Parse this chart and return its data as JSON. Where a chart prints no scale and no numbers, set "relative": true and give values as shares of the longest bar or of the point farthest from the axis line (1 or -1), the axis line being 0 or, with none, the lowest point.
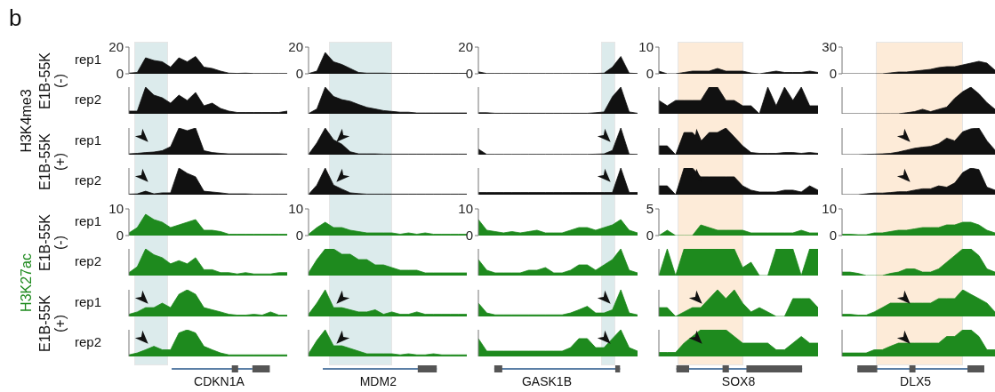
{
  "chart_data": [
    {
      "type": "area",
      "title": "b",
      "annotations": [
        "H3K4me3",
        "E1B-55K\n(-)"
      ],
      "ylabel": "rep1",
      "categories": [
        null,
        null,
        null,
        null,
        null,
        null,
        null,
        null,
        null,
        null,
        null,
        null,
        null,
        null,
        null,
        null,
        null,
        null,
        null,
        null
      ],
      "values": [
        0.5,
        1,
        12,
        10,
        9,
        5,
        12,
        9,
        13,
        5,
        4,
        2,
        0.5,
        0.3,
        0.5,
        0.2,
        0.2,
        0.2,
        0.2,
        0.2
      ],
      "color": "#111111",
      "ylim": [
        0,
        20
      ],
      "yticks": [
        0,
        20
      ],
      "tick_labels": "y"
    },
    {
      "type": "area",
      "categories": [
        null,
        null,
        null,
        null,
        null,
        null,
        null,
        null,
        null,
        null,
        null,
        null,
        null,
        null,
        null,
        null,
        null,
        null,
        null,
        null
      ],
      "values": [
        0.2,
        2,
        16,
        9,
        7,
        4,
        1,
        0.5,
        0.5,
        0.5,
        0.3,
        0.3,
        0.3,
        0.3,
        0.3,
        0.3,
        0.3,
        0.3,
        0.3,
        0.3
      ],
      "color": "#111111",
      "ylim": [
        0,
        20
      ],
      "yticks": [
        0,
        20
      ],
      "tick_labels": "y"
    },
    {
      "type": "area",
      "categories": [
        null,
        null,
        null,
        null,
        null,
        null,
        null,
        null,
        null,
        null,
        null,
        null,
        null,
        null,
        null,
        null,
        null,
        null,
        null,
        null
      ],
      "values": [
        1.5,
        0.2,
        0.2,
        0.2,
        0.2,
        0.2,
        0.2,
        0.2,
        0.2,
        0.2,
        0.2,
        0.2,
        0.2,
        0.2,
        0.3,
        0.5,
        5,
        13,
        0.5,
        0.2
      ],
      "color": "#111111",
      "ylim": [
        0,
        20
      ],
      "yticks": [
        0,
        20
      ],
      "tick_labels": "y"
    },
    {
      "type": "area",
      "categories": [
        null,
        null,
        null,
        null,
        null,
        null,
        null,
        null,
        null,
        null,
        null,
        null,
        null,
        null,
        null,
        null,
        null,
        null,
        null,
        null
      ],
      "values": [
        1,
        0,
        0,
        0.5,
        1,
        1,
        1,
        2,
        1,
        1,
        1,
        0.3,
        0,
        0.5,
        1,
        0.5,
        0.5,
        0.5,
        1,
        0.5
      ],
      "color": "#111111",
      "ylim": [
        0,
        10
      ],
      "yticks": [
        0,
        10
      ],
      "tick_labels": "y"
    },
    {
      "type": "area",
      "categories": [
        null,
        null,
        null,
        null,
        null,
        null,
        null,
        null,
        null,
        null,
        null,
        null,
        null,
        null,
        null,
        null,
        null,
        null,
        null,
        null
      ],
      "values": [
        0,
        0,
        0,
        0,
        0,
        0,
        1,
        2,
        2,
        3,
        4,
        5,
        7,
        8,
        8,
        10,
        12,
        14,
        12,
        4
      ],
      "color": "#111111",
      "ylim": [
        0,
        30
      ],
      "yticks": [
        0,
        30
      ],
      "tick_labels": "y"
    },
    {
      "type": "area",
      "ylabel": "rep2",
      "relative": true,
      "categories": [
        null,
        null,
        null,
        null,
        null,
        null,
        null,
        null,
        null,
        null,
        null,
        null,
        null,
        null,
        null,
        null,
        null,
        null,
        null,
        null
      ],
      "values": [
        0.1,
        0.1,
        1,
        0.7,
        0.6,
        0.4,
        0.7,
        0.5,
        0.8,
        0.3,
        0.4,
        0.2,
        0.1,
        0.05,
        0.05,
        0.05,
        0.05,
        0.05,
        0.05,
        0.1
      ],
      "color": "#111111"
    },
    {
      "type": "area",
      "relative": true,
      "categories": [
        null,
        null,
        null,
        null,
        null,
        null,
        null,
        null,
        null,
        null,
        null,
        null,
        null,
        null,
        null,
        null,
        null,
        null,
        null,
        null
      ],
      "values": [
        0.01,
        0.18,
        1,
        0.65,
        0.53,
        0.47,
        0.35,
        0.24,
        0.18,
        0.12,
        0.09,
        0.06,
        0.06,
        0.03,
        0.03,
        0.03,
        0.03,
        0.03,
        0.03,
        0.03
      ],
      "color": "#111111"
    },
    {
      "type": "area",
      "relative": true,
      "categories": [
        null,
        null,
        null,
        null,
        null,
        null,
        null,
        null,
        null,
        null,
        null,
        null,
        null,
        null,
        null,
        null,
        null,
        null,
        null,
        null
      ],
      "values": [
        0.04,
        0.04,
        0.02,
        0.02,
        0.02,
        0.02,
        0.02,
        0.02,
        0.02,
        0.02,
        0.02,
        0.02,
        0.02,
        0.02,
        0.04,
        0.07,
        0.64,
        1,
        0.07,
        0.02
      ],
      "color": "#111111"
    },
    {
      "type": "area",
      "relative": true,
      "categories": [
        null,
        null,
        null,
        null,
        null,
        null,
        null,
        null,
        null,
        null,
        null,
        null,
        null,
        null,
        null,
        null,
        null,
        null,
        null,
        null
      ],
      "values": [
        0.5,
        0.3,
        0.5,
        0.5,
        0.5,
        0.5,
        1,
        1,
        0.5,
        0.5,
        0.3,
        0.3,
        0,
        1,
        0.3,
        1,
        0.5,
        1,
        0.3,
        0.3
      ],
      "color": "#111111"
    },
    {
      "type": "area",
      "relative": true,
      "categories": [
        null,
        null,
        null,
        null,
        null,
        null,
        null,
        null,
        null,
        null,
        null,
        null,
        null,
        null,
        null,
        null,
        null,
        null,
        null,
        null
      ],
      "values": [
        0,
        0,
        0,
        0,
        0,
        0,
        0,
        0,
        0.04,
        0.08,
        0.17,
        0.08,
        0.17,
        0.25,
        0.58,
        0.83,
        1,
        0.75,
        0.42,
        0.17
      ],
      "color": "#111111"
    },
    {
      "type": "area",
      "annotations": [
        "E1B-55K\n(+)"
      ],
      "ylabel": "rep1",
      "relative": true,
      "categories": [
        null,
        null,
        null,
        null,
        null,
        null,
        null,
        null,
        null,
        null,
        null,
        null,
        null,
        null,
        null,
        null,
        null,
        null,
        null,
        null
      ],
      "values": [
        0.03,
        0.05,
        0.08,
        0.1,
        0.15,
        0.3,
        1,
        0.9,
        1,
        0.15,
        0.08,
        0.05,
        0.03,
        0.03,
        0.03,
        0.03,
        0.03,
        0.03,
        0.03,
        0.02
      ],
      "color": "#111111"
    },
    {
      "type": "area",
      "relative": true,
      "categories": [
        null,
        null,
        null,
        null,
        null,
        null,
        null,
        null,
        null,
        null,
        null,
        null,
        null,
        null,
        null,
        null,
        null,
        null,
        null,
        null
      ],
      "values": [
        0.01,
        0.44,
        1,
        0.56,
        0.39,
        0.11,
        0.03,
        0.03,
        0.03,
        0.02,
        0.02,
        0.02,
        0.02,
        0.02,
        0.02,
        0.02,
        0.02,
        0.02,
        0.02,
        0.02
      ],
      "color": "#111111"
    },
    {
      "type": "area",
      "relative": true,
      "categories": [
        null,
        null,
        null,
        null,
        null,
        null,
        null,
        null,
        null,
        null,
        null,
        null,
        null,
        null,
        null,
        null,
        null,
        null,
        null,
        null
      ],
      "values": [
        0.21,
        0.01,
        0.01,
        0.01,
        0.01,
        0.01,
        0.01,
        0.01,
        0.01,
        0.01,
        0.01,
        0.01,
        0.01,
        0.01,
        0.02,
        0.03,
        0.16,
        1,
        0.02,
        0.01
      ],
      "color": "#111111"
    },
    {
      "type": "area",
      "relative": true,
      "categories": [
        null,
        null,
        null,
        null,
        null,
        null,
        null,
        null,
        null,
        null,
        null,
        null,
        null,
        null,
        null,
        null,
        null,
        null,
        null,
        null
      ],
      "values": [
        0.33,
        0.33,
        0,
        0.83,
        0.83,
        0.5,
        0.83,
        0.83,
        1,
        0.67,
        0.33,
        0.08,
        0.05,
        0.05,
        0.05,
        0.08,
        0.08,
        0.05,
        0.08,
        0.05
      ],
      "color": "#111111"
    },
    {
      "type": "area",
      "relative": true,
      "categories": [
        null,
        null,
        null,
        null,
        null,
        null,
        null,
        null,
        null,
        null,
        null,
        null,
        null,
        null,
        null,
        null,
        null,
        null,
        null,
        null
      ],
      "values": [
        0,
        0,
        0,
        0.01,
        0.02,
        0.03,
        0.05,
        0.1,
        0.17,
        0.24,
        0.28,
        0.31,
        0.41,
        0.62,
        0.52,
        0.86,
        0.97,
        1,
        0.52,
        0.17
      ],
      "color": "#111111"
    },
    {
      "type": "area",
      "ylabel": "rep2",
      "relative": true,
      "categories": [
        null,
        null,
        null,
        null,
        null,
        null,
        null,
        null,
        null,
        null,
        null,
        null,
        null,
        null,
        null,
        null,
        null,
        null,
        null,
        null
      ],
      "values": [
        0.02,
        0.03,
        0.13,
        0.03,
        0.07,
        0.07,
        1,
        0.8,
        0.67,
        0.13,
        0.1,
        0.07,
        0.03,
        0.03,
        0.03,
        0.02,
        0.02,
        0.02,
        0.02,
        0.02
      ],
      "color": "#111111"
    },
    {
      "type": "area",
      "relative": true,
      "categories": [
        null,
        null,
        null,
        null,
        null,
        null,
        null,
        null,
        null,
        null,
        null,
        null,
        null,
        null,
        null,
        null,
        null,
        null,
        null,
        null
      ],
      "values": [
        0.01,
        0.36,
        1,
        0.36,
        0.21,
        0.07,
        0.04,
        0.02,
        0.02,
        0.02,
        0.02,
        0.02,
        0.02,
        0.02,
        0.02,
        0.02,
        0.02,
        0.02,
        0.02,
        0.02
      ],
      "color": "#111111"
    },
    {
      "type": "area",
      "relative": true,
      "categories": [
        null,
        null,
        null,
        null,
        null,
        null,
        null,
        null,
        null,
        null,
        null,
        null,
        null,
        null,
        null,
        null,
        null,
        null,
        null,
        null
      ],
      "values": [
        0.08,
        0.08,
        0.08,
        0.08,
        0.08,
        0.08,
        0.08,
        0.08,
        0.08,
        0.08,
        0.08,
        0.08,
        0.08,
        0.08,
        0.08,
        0.08,
        0.08,
        1,
        0.08,
        0.08
      ],
      "color": "#111111"
    },
    {
      "type": "area",
      "relative": true,
      "categories": [
        null,
        null,
        null,
        null,
        null,
        null,
        null,
        null,
        null,
        null,
        null,
        null,
        null,
        null,
        null,
        null,
        null,
        null,
        null,
        null
      ],
      "values": [
        0.33,
        0.33,
        0,
        1,
        1,
        0.67,
        0.67,
        0.67,
        0.67,
        0.67,
        0.33,
        0.17,
        0.1,
        0.1,
        0.1,
        0.17,
        0.17,
        0.1,
        0.33,
        0.17
      ],
      "color": "#111111"
    },
    {
      "type": "area",
      "relative": true,
      "categories": [
        null,
        null,
        null,
        null,
        null,
        null,
        null,
        null,
        null,
        null,
        null,
        null,
        null,
        null,
        null,
        null,
        null,
        null,
        null,
        null
      ],
      "values": [
        0,
        0,
        0,
        0.03,
        0.06,
        0.06,
        0.08,
        0.11,
        0.11,
        0.17,
        0.22,
        0.22,
        0.33,
        0.28,
        0.44,
        0.83,
        1,
        0.94,
        0.28,
        0.17
      ],
      "color": "#111111"
    },
    {
      "type": "area",
      "annotations": [
        "H3K27ac",
        "E1B-55K\n(-)"
      ],
      "ylabel": "rep1",
      "categories": [
        null,
        null,
        null,
        null,
        null,
        null,
        null,
        null,
        null,
        null,
        null,
        null,
        null,
        null,
        null,
        null,
        null,
        null,
        null,
        null
      ],
      "values": [
        1,
        3,
        8,
        6,
        5,
        3,
        4,
        5,
        6,
        2,
        2,
        1.5,
        0.5,
        0.5,
        0.5,
        0.5,
        0.5,
        0.5,
        0.5,
        0.5
      ],
      "color": "#1e8a1e",
      "ylim": [
        0,
        10
      ],
      "yticks": [
        0,
        10
      ],
      "tick_labels": "y"
    },
    {
      "type": "area",
      "categories": [
        null,
        null,
        null,
        null,
        null,
        null,
        null,
        null,
        null,
        null,
        null,
        null,
        null,
        null,
        null,
        null,
        null,
        null,
        null,
        null
      ],
      "values": [
        0.5,
        3,
        5,
        3,
        3,
        2,
        1.5,
        1,
        1,
        1,
        1,
        0.5,
        1,
        0.5,
        1,
        0.5,
        0.5,
        0.5,
        0.5,
        0.5
      ],
      "color": "#1e8a1e",
      "ylim": [
        0,
        10
      ],
      "yticks": [
        0,
        10
      ],
      "tick_labels": "y"
    },
    {
      "type": "area",
      "categories": [
        null,
        null,
        null,
        null,
        null,
        null,
        null,
        null,
        null,
        null,
        null,
        null,
        null,
        null,
        null,
        null,
        null,
        null,
        null,
        null
      ],
      "values": [
        6,
        2,
        1.5,
        1,
        1.5,
        1,
        1.5,
        2,
        1,
        1,
        1,
        2,
        3,
        3,
        2,
        3,
        4,
        6,
        2,
        1
      ],
      "color": "#1e8a1e",
      "ylim": [
        0,
        10
      ],
      "yticks": [
        0,
        10
      ],
      "tick_labels": "y"
    },
    {
      "type": "area",
      "categories": [
        null,
        null,
        null,
        null,
        null,
        null,
        null,
        null,
        null,
        null,
        null,
        null,
        null,
        null,
        null,
        null,
        null,
        null,
        null,
        null
      ],
      "values": [
        0,
        1,
        0,
        0,
        0,
        2,
        1.5,
        1,
        1,
        1,
        1,
        0.5,
        0.5,
        0.5,
        0.5,
        0.5,
        0.5,
        1,
        0.5,
        0.5
      ],
      "color": "#1e8a1e",
      "ylim": [
        0,
        5
      ],
      "yticks": [
        0,
        5
      ],
      "tick_labels": "y"
    },
    {
      "type": "area",
      "categories": [
        null,
        null,
        null,
        null,
        null,
        null,
        null,
        null,
        null,
        null,
        null,
        null,
        null,
        null,
        null,
        null,
        null,
        null,
        null,
        null
      ],
      "values": [
        0.5,
        0.5,
        0.3,
        0.3,
        1,
        1,
        1.5,
        2,
        2,
        2.5,
        3,
        3,
        3,
        4,
        4,
        5,
        5,
        4,
        2,
        1
      ],
      "color": "#1e8a1e",
      "ylim": [
        0,
        10
      ],
      "yticks": [
        0,
        10
      ],
      "tick_labels": "y"
    },
    {
      "type": "area",
      "ylabel": "rep2",
      "relative": true,
      "categories": [
        null,
        null,
        null,
        null,
        null,
        null,
        null,
        null,
        null,
        null,
        null,
        null,
        null,
        null,
        null,
        null,
        null,
        null,
        null,
        null
      ],
      "values": [
        0.11,
        0.33,
        1,
        0.78,
        0.67,
        0.44,
        0.56,
        0.44,
        0.67,
        0.22,
        0.22,
        0.11,
        0.11,
        0.06,
        0.11,
        0.06,
        0.06,
        0.06,
        0.11,
        0.11
      ],
      "color": "#1e8a1e"
    },
    {
      "type": "area",
      "relative": true,
      "categories": [
        null,
        null,
        null,
        null,
        null,
        null,
        null,
        null,
        null,
        null,
        null,
        null,
        null,
        null,
        null,
        null,
        null,
        null,
        null,
        null
      ],
      "values": [
        0.1,
        0.6,
        1,
        1,
        0.8,
        0.8,
        0.6,
        0.6,
        0.4,
        0.4,
        0.3,
        0.2,
        0.2,
        0.2,
        0.1,
        0.1,
        0.1,
        0.1,
        0.1,
        0.1
      ],
      "color": "#1e8a1e"
    },
    {
      "type": "area",
      "relative": true,
      "categories": [
        null,
        null,
        null,
        null,
        null,
        null,
        null,
        null,
        null,
        null,
        null,
        null,
        null,
        null,
        null,
        null,
        null,
        null,
        null,
        null
      ],
      "values": [
        0.6,
        0.2,
        0.1,
        0.1,
        0.1,
        0.1,
        0.2,
        0.2,
        0.3,
        0.1,
        0.1,
        0.2,
        0.4,
        0.4,
        0.2,
        0.4,
        0.6,
        1,
        0.2,
        0.1
      ],
      "color": "#1e8a1e"
    },
    {
      "type": "area",
      "relative": true,
      "categories": [
        null,
        null,
        null,
        null,
        null,
        null,
        null,
        null,
        null,
        null,
        null,
        null,
        null,
        null,
        null,
        null,
        null,
        null,
        null,
        null
      ],
      "values": [
        0,
        1,
        0,
        1,
        1,
        1,
        1,
        1,
        1,
        1,
        0.3,
        0.5,
        0,
        0,
        1,
        1,
        1,
        0,
        1,
        1
      ],
      "color": "#1e8a1e"
    },
    {
      "type": "area",
      "relative": true,
      "categories": [
        null,
        null,
        null,
        null,
        null,
        null,
        null,
        null,
        null,
        null,
        null,
        null,
        null,
        null,
        null,
        null,
        null,
        null,
        null,
        null
      ],
      "values": [
        0.13,
        0.13,
        0.08,
        0,
        0,
        0,
        0.08,
        0.13,
        0.25,
        0.25,
        0.13,
        0.13,
        0.25,
        0.5,
        0.75,
        1,
        1,
        0.75,
        0.25,
        0.13
      ],
      "color": "#1e8a1e"
    },
    {
      "type": "area",
      "annotations": [
        "E1B-55K\n(+)"
      ],
      "ylabel": "rep1",
      "relative": true,
      "categories": [
        null,
        null,
        null,
        null,
        null,
        null,
        null,
        null,
        null,
        null,
        null,
        null,
        null,
        null,
        null,
        null,
        null,
        null,
        null,
        null
      ],
      "values": [
        0.08,
        0.17,
        0.33,
        0.33,
        0.5,
        0.33,
        0.83,
        1,
        0.83,
        0.33,
        0.25,
        0.17,
        0.08,
        0.05,
        0.05,
        0.08,
        0.05,
        0.17,
        0.05,
        0.05
      ],
      "color": "#1e8a1e"
    },
    {
      "type": "area",
      "relative": true,
      "categories": [
        null,
        null,
        null,
        null,
        null,
        null,
        null,
        null,
        null,
        null,
        null,
        null,
        null,
        null,
        null,
        null,
        null,
        null,
        null,
        null
      ],
      "values": [
        0.08,
        0.5,
        1,
        0.33,
        0.33,
        0.25,
        0.17,
        0.17,
        0.25,
        0.08,
        0.17,
        0.08,
        0.08,
        0.17,
        0.08,
        0.08,
        0.08,
        0.08,
        0.08,
        0.08
      ],
      "color": "#1e8a1e"
    },
    {
      "type": "area",
      "relative": true,
      "categories": [
        null,
        null,
        null,
        null,
        null,
        null,
        null,
        null,
        null,
        null,
        null,
        null,
        null,
        null,
        null,
        null,
        null,
        null,
        null,
        null
      ],
      "values": [
        0.5,
        0.13,
        0.06,
        0.06,
        0.06,
        0.06,
        0.06,
        0.06,
        0.06,
        0.06,
        0.06,
        0.13,
        0.25,
        0.38,
        0.13,
        0.13,
        0.25,
        1,
        0.13,
        0.06
      ],
      "color": "#1e8a1e"
    },
    {
      "type": "area",
      "relative": true,
      "categories": [
        null,
        null,
        null,
        null,
        null,
        null,
        null,
        null,
        null,
        null,
        null,
        null,
        null,
        null,
        null,
        null,
        null,
        null,
        null,
        null
      ],
      "values": [
        0.33,
        0.33,
        0,
        0.17,
        0.33,
        0.33,
        0.67,
        1,
        0.67,
        1,
        0.5,
        0.17,
        0.33,
        0.17,
        0,
        0,
        0.67,
        0.67,
        0.67,
        0.33
      ],
      "color": "#1e8a1e"
    },
    {
      "type": "area",
      "relative": true,
      "categories": [
        null,
        null,
        null,
        null,
        null,
        null,
        null,
        null,
        null,
        null,
        null,
        null,
        null,
        null,
        null,
        null,
        null,
        null,
        null,
        null
      ],
      "values": [
        0.08,
        0.08,
        0.05,
        0.05,
        0.17,
        0.33,
        0.5,
        0.5,
        0.5,
        0.5,
        0.5,
        0.5,
        0.67,
        0.67,
        0.67,
        1,
        0.83,
        0.67,
        0.5,
        0.17
      ],
      "color": "#1e8a1e"
    },
    {
      "type": "area",
      "ylabel": "rep2",
      "xlabel": "CDKN1A",
      "relative": true,
      "categories": [
        null,
        null,
        null,
        null,
        null,
        null,
        null,
        null,
        null,
        null,
        null,
        null,
        null,
        null,
        null,
        null,
        null,
        null,
        null,
        null
      ],
      "values": [
        0.06,
        0.13,
        0.25,
        0.38,
        0.25,
        0.25,
        0.88,
        1,
        0.88,
        0.38,
        0.25,
        0.13,
        0.06,
        0.06,
        0.06,
        0.06,
        0.06,
        0.06,
        0.06,
        0.06
      ],
      "color": "#1e8a1e"
    },
    {
      "type": "area",
      "xlabel": "MDM2",
      "relative": true,
      "categories": [
        null,
        null,
        null,
        null,
        null,
        null,
        null,
        null,
        null,
        null,
        null,
        null,
        null,
        null,
        null,
        null,
        null,
        null,
        null,
        null
      ],
      "values": [
        0.1,
        0.6,
        1,
        0.4,
        0.4,
        0.3,
        0.2,
        0.1,
        0.1,
        0.1,
        0.1,
        0.06,
        0.1,
        0.06,
        0.06,
        0.1,
        0.06,
        0.06,
        0.06,
        0.06
      ],
      "color": "#1e8a1e"
    },
    {
      "type": "area",
      "xlabel": "GASK1B",
      "relative": true,
      "categories": [
        null,
        null,
        null,
        null,
        null,
        null,
        null,
        null,
        null,
        null,
        null,
        null,
        null,
        null,
        null,
        null,
        null,
        null,
        null,
        null
      ],
      "values": [
        0.67,
        0.2,
        0.2,
        0.2,
        0.2,
        0.2,
        0.2,
        0.2,
        0.2,
        0.2,
        0.2,
        0.33,
        0.67,
        0.67,
        0.33,
        0.33,
        0.67,
        1,
        0.33,
        0.2
      ],
      "color": "#1e8a1e"
    },
    {
      "type": "area",
      "xlabel": "SOX8",
      "relative": true,
      "categories": [
        null,
        null,
        null,
        null,
        null,
        null,
        null,
        null,
        null,
        null,
        null,
        null,
        null,
        null,
        null,
        null,
        null,
        null,
        null,
        null
      ],
      "values": [
        0.15,
        0.15,
        0.15,
        0.5,
        0.75,
        1,
        1,
        1,
        1,
        0.75,
        0.5,
        0.5,
        0.5,
        0.5,
        0.25,
        0.25,
        0.5,
        0.75,
        0.5,
        0.5
      ],
      "color": "#1e8a1e"
    },
    {
      "type": "area",
      "xlabel": "DLX5",
      "relative": true,
      "categories": [
        null,
        null,
        null,
        null,
        null,
        null,
        null,
        null,
        null,
        null,
        null,
        null,
        null,
        null,
        null,
        null,
        null,
        null,
        null,
        null
      ],
      "values": [
        0.13,
        0.13,
        0.13,
        0.13,
        0.25,
        0.25,
        0.38,
        0.5,
        0.5,
        0.5,
        0.5,
        0.5,
        0.5,
        0.75,
        0.75,
        1,
        1,
        0.75,
        0.25,
        0.25
      ],
      "color": "#1e8a1e"
    }
  ]
}
